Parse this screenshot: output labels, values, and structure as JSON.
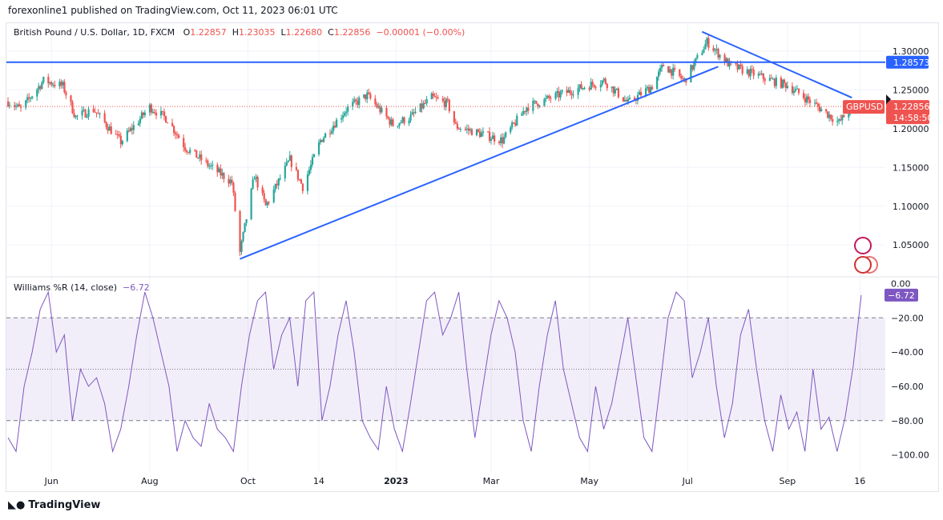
{
  "published": "forexonline1 published on TradingView.com, Oct 11, 2023 06:01 UTC",
  "legend": {
    "symbol": "British Pound / U.S. Dollar, 1D, FXCM",
    "o_label": "O",
    "o": "1.22857",
    "h_label": "H",
    "h": "1.23035",
    "l_label": "L",
    "l": "1.22680",
    "c_label": "C",
    "c": "1.22856",
    "change": "−0.00001 (−0.00%)"
  },
  "indicator": {
    "name": "Williams %R (14, close)",
    "value": "−6.72"
  },
  "price_tag": {
    "symbol": "GBPUSD",
    "price": "1.22856",
    "countdown": "14:58:50"
  },
  "hline_tag": "1.28573",
  "logo": "TradingView",
  "colors": {
    "up": "#26a69a",
    "down": "#ef5350",
    "line": "#2962ff",
    "wr": "#7e57c2",
    "band": "#7e57c2"
  },
  "chart_data": [
    {
      "type": "candlestick",
      "ylim": [
        1.01,
        1.335
      ],
      "yticks": [
        "1.30000",
        "1.25000",
        "1.20000",
        "1.15000",
        "1.10000",
        "1.05000"
      ],
      "xticks": [
        [
          "2022-06-01",
          "Jun"
        ],
        [
          "2022-08-01",
          "Aug"
        ],
        [
          "2022-10-01",
          "Oct"
        ],
        [
          "2022-11-14",
          "14"
        ],
        [
          "2023-01-01",
          "2023"
        ],
        [
          "2023-03-01",
          "Mar"
        ],
        [
          "2023-05-01",
          "May"
        ],
        [
          "2023-07-01",
          "Jul"
        ],
        [
          "2023-09-01",
          "Sep"
        ],
        [
          "2023-10-16",
          "16"
        ]
      ],
      "close_keypoints": [
        [
          "2022-05-05",
          1.235
        ],
        [
          "2022-05-13",
          1.225
        ],
        [
          "2022-05-27",
          1.262
        ],
        [
          "2022-06-08",
          1.255
        ],
        [
          "2022-06-16",
          1.215
        ],
        [
          "2022-06-27",
          1.225
        ],
        [
          "2022-07-14",
          1.183
        ],
        [
          "2022-08-01",
          1.228
        ],
        [
          "2022-08-12",
          1.212
        ],
        [
          "2022-08-23",
          1.176
        ],
        [
          "2022-09-07",
          1.152
        ],
        [
          "2022-09-21",
          1.131
        ],
        [
          "2022-09-26",
          1.04
        ],
        [
          "2022-10-05",
          1.14
        ],
        [
          "2022-10-12",
          1.1
        ],
        [
          "2022-10-27",
          1.16
        ],
        [
          "2022-11-04",
          1.125
        ],
        [
          "2022-11-15",
          1.185
        ],
        [
          "2022-12-01",
          1.225
        ],
        [
          "2022-12-14",
          1.243
        ],
        [
          "2022-12-30",
          1.205
        ],
        [
          "2023-01-10",
          1.215
        ],
        [
          "2023-01-23",
          1.24
        ],
        [
          "2023-02-02",
          1.232
        ],
        [
          "2023-02-07",
          1.203
        ],
        [
          "2023-03-08",
          1.185
        ],
        [
          "2023-03-23",
          1.228
        ],
        [
          "2023-04-14",
          1.245
        ],
        [
          "2023-05-10",
          1.262
        ],
        [
          "2023-05-25",
          1.233
        ],
        [
          "2023-06-09",
          1.255
        ],
        [
          "2023-06-16",
          1.282
        ],
        [
          "2023-06-29",
          1.262
        ],
        [
          "2023-07-13",
          1.312
        ],
        [
          "2023-07-27",
          1.282
        ],
        [
          "2023-08-14",
          1.268
        ],
        [
          "2023-08-25",
          1.26
        ],
        [
          "2023-09-01",
          1.256
        ],
        [
          "2023-09-20",
          1.228
        ],
        [
          "2023-10-03",
          1.208
        ],
        [
          "2023-10-11",
          1.2286
        ]
      ],
      "hline": 1.28573,
      "trendlines": [
        [
          [
            "2022-09-26",
            1.032
          ],
          [
            "2023-07-20",
            1.28
          ]
        ],
        [
          [
            "2023-07-10",
            1.325
          ],
          [
            "2023-10-11",
            1.24
          ]
        ]
      ],
      "last_close": 1.22856
    },
    {
      "type": "line",
      "name": "Williams %R (14, close)",
      "ylim": [
        -110,
        3
      ],
      "yticks": [
        "0.00",
        "−20.00",
        "−40.00",
        "−60.00",
        "−80.00",
        "−100.00"
      ],
      "bands": [
        -20,
        -50,
        -80
      ],
      "values": [
        -90,
        -98,
        -60,
        -40,
        -15,
        -5,
        -40,
        -30,
        -80,
        -50,
        -60,
        -55,
        -70,
        -98,
        -85,
        -60,
        -30,
        -5,
        -20,
        -40,
        -60,
        -98,
        -80,
        -90,
        -95,
        -70,
        -85,
        -90,
        -98,
        -60,
        -30,
        -10,
        -5,
        -50,
        -30,
        -20,
        -60,
        -10,
        -5,
        -80,
        -60,
        -30,
        -10,
        -40,
        -80,
        -90,
        -97,
        -60,
        -85,
        -98,
        -70,
        -40,
        -10,
        -5,
        -30,
        -20,
        -5,
        -50,
        -90,
        -60,
        -30,
        -10,
        -20,
        -40,
        -80,
        -98,
        -60,
        -30,
        -10,
        -50,
        -70,
        -90,
        -98,
        -60,
        -85,
        -70,
        -45,
        -20,
        -55,
        -90,
        -98,
        -60,
        -20,
        -5,
        -10,
        -55,
        -40,
        -20,
        -60,
        -90,
        -70,
        -30,
        -15,
        -50,
        -80,
        -98,
        -65,
        -85,
        -75,
        -98,
        -50,
        -85,
        -78,
        -98,
        -78,
        -48,
        -6.72
      ]
    }
  ]
}
